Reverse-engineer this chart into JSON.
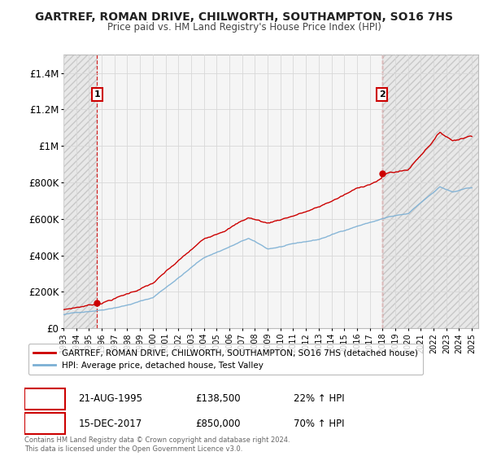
{
  "title": "GARTREF, ROMAN DRIVE, CHILWORTH, SOUTHAMPTON, SO16 7HS",
  "subtitle": "Price paid vs. HM Land Registry's House Price Index (HPI)",
  "ylim": [
    0,
    1500000
  ],
  "yticks": [
    0,
    200000,
    400000,
    600000,
    800000,
    1000000,
    1200000,
    1400000
  ],
  "ytick_labels": [
    "£0",
    "£200K",
    "£400K",
    "£600K",
    "£800K",
    "£1M",
    "£1.2M",
    "£1.4M"
  ],
  "sale1_x": 1995.64,
  "sale1_y": 138500,
  "sale2_x": 2017.96,
  "sale2_y": 850000,
  "property_color": "#cc0000",
  "hpi_color": "#7bafd4",
  "legend_property": "GARTREF, ROMAN DRIVE, CHILWORTH, SOUTHAMPTON, SO16 7HS (detached house)",
  "legend_hpi": "HPI: Average price, detached house, Test Valley",
  "annotation1_date": "21-AUG-1995",
  "annotation1_price": "£138,500",
  "annotation1_hpi": "22% ↑ HPI",
  "annotation2_date": "15-DEC-2017",
  "annotation2_price": "£850,000",
  "annotation2_hpi": "70% ↑ HPI",
  "copyright": "Contains HM Land Registry data © Crown copyright and database right 2024.\nThis data is licensed under the Open Government Licence v3.0.",
  "bg_color": "#ffffff",
  "plot_bg_color": "#f5f5f5",
  "hatch_color": "#cccccc",
  "grid_color": "#e0e0e0",
  "xmin": 1993,
  "xmax": 2025.5
}
